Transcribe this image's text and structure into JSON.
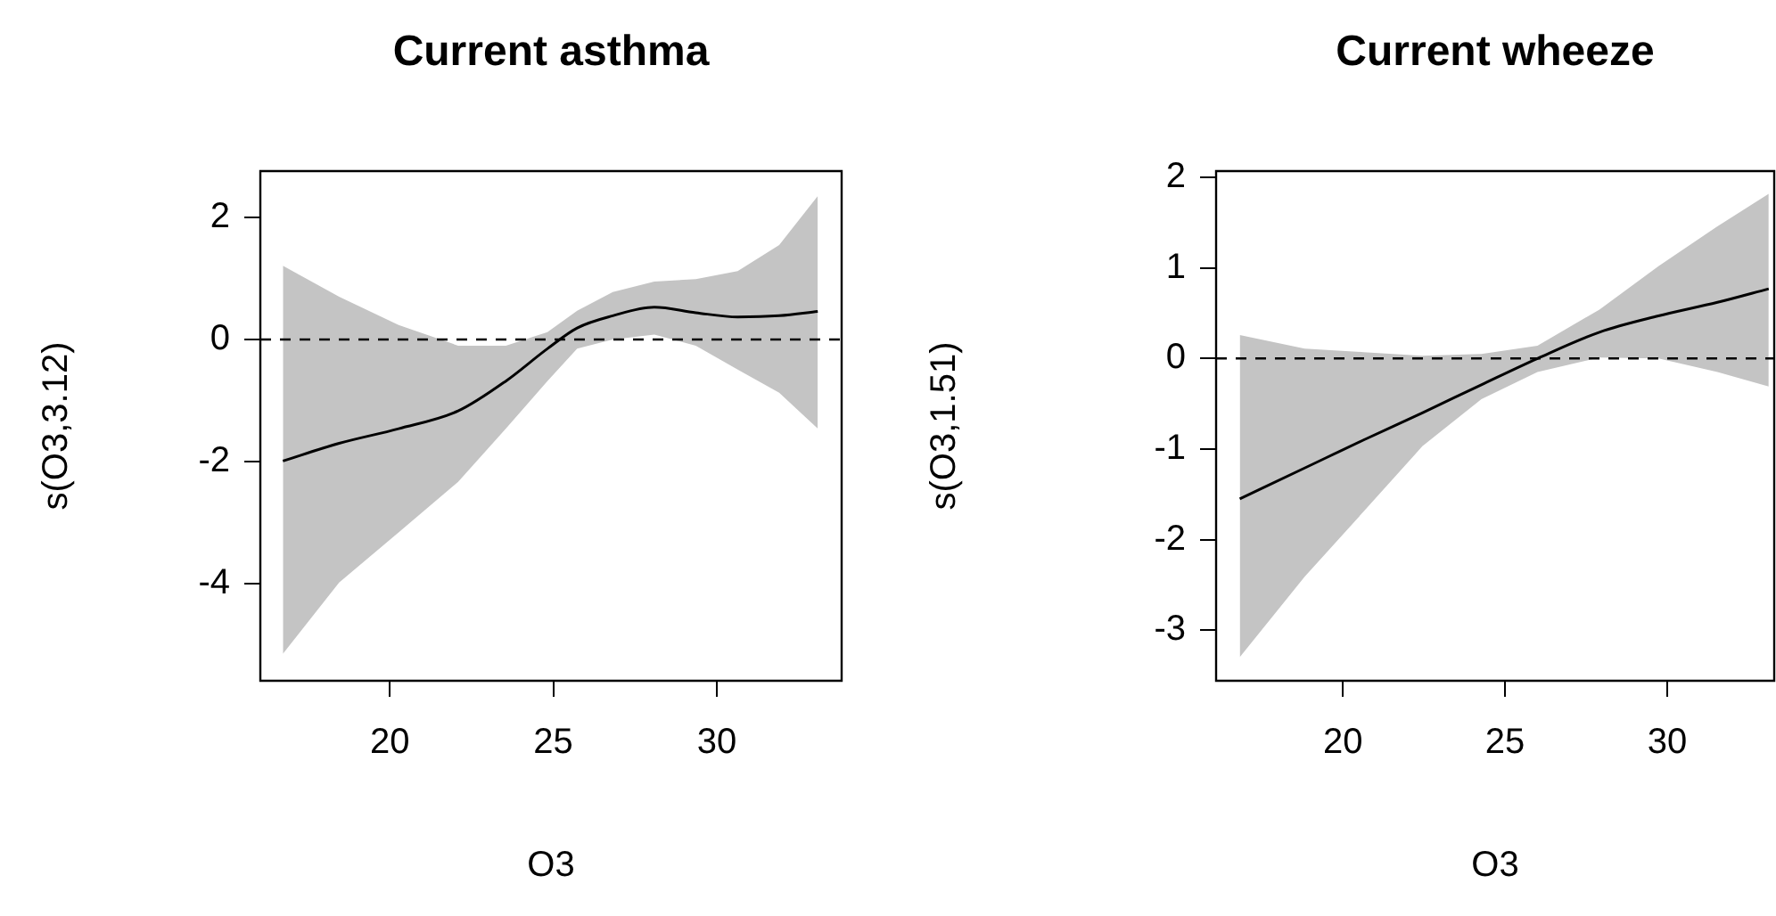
{
  "chart_data": [
    {
      "type": "line",
      "title": "Current asthma",
      "xlabel": "O3",
      "ylabel": "s(O3,3.12)",
      "xlim": [
        16.04,
        33.82
      ],
      "xticks": [
        20,
        25,
        30
      ],
      "ylim": [
        -5.59,
        2.76
      ],
      "yticks": [
        -4,
        -2,
        0,
        2
      ],
      "grid": false,
      "series": [
        {
          "color": "#000000",
          "x": [
            16.73,
            18.45,
            20.27,
            22.09,
            23.55,
            24.82,
            25.73,
            26.82,
            28.09,
            29.36,
            30.64,
            31.91,
            33.09
          ],
          "values": [
            -1.99,
            -1.7,
            -1.46,
            -1.17,
            -0.68,
            -0.15,
            0.19,
            0.39,
            0.53,
            0.44,
            0.37,
            0.39,
            0.46
          ],
          "lower": [
            -5.15,
            -3.98,
            -3.16,
            -2.33,
            -1.46,
            -0.68,
            -0.15,
            0,
            0.08,
            -0.1,
            -0.49,
            -0.87,
            -1.46
          ],
          "upper": [
            1.21,
            0.7,
            0.24,
            -0.1,
            -0.1,
            0.12,
            0.47,
            0.78,
            0.95,
            0.99,
            1.12,
            1.55,
            2.35
          ]
        }
      ],
      "ref_lines": [
        {
          "axis": "y",
          "value": 0,
          "line_style": "dashed"
        }
      ]
    },
    {
      "type": "line",
      "title": "Current wheeze",
      "xlabel": "O3",
      "ylabel": "s(O3,1.51)",
      "xlim": [
        16.09,
        33.3
      ],
      "xticks": [
        20,
        25,
        30
      ],
      "ylim": [
        -3.56,
        2.07
      ],
      "yticks": [
        -3,
        -2,
        -1,
        0,
        1,
        2
      ],
      "grid": false,
      "series": [
        {
          "color": "#000000",
          "x": [
            16.82,
            18.82,
            20.64,
            22.45,
            24.27,
            26.0,
            27.91,
            29.73,
            31.55,
            33.13
          ],
          "values": [
            -1.55,
            -1.21,
            -0.9,
            -0.6,
            -0.29,
            0,
            0.29,
            0.47,
            0.62,
            0.77
          ],
          "lower": [
            -3.3,
            -2.41,
            -1.69,
            -0.97,
            -0.45,
            -0.15,
            0.01,
            0,
            -0.15,
            -0.31
          ],
          "upper": [
            0.26,
            0.11,
            0.07,
            0.03,
            0.05,
            0.14,
            0.54,
            1.02,
            1.46,
            1.82
          ]
        }
      ],
      "ref_lines": [
        {
          "axis": "y",
          "value": 0,
          "line_style": "dashed"
        }
      ]
    }
  ]
}
